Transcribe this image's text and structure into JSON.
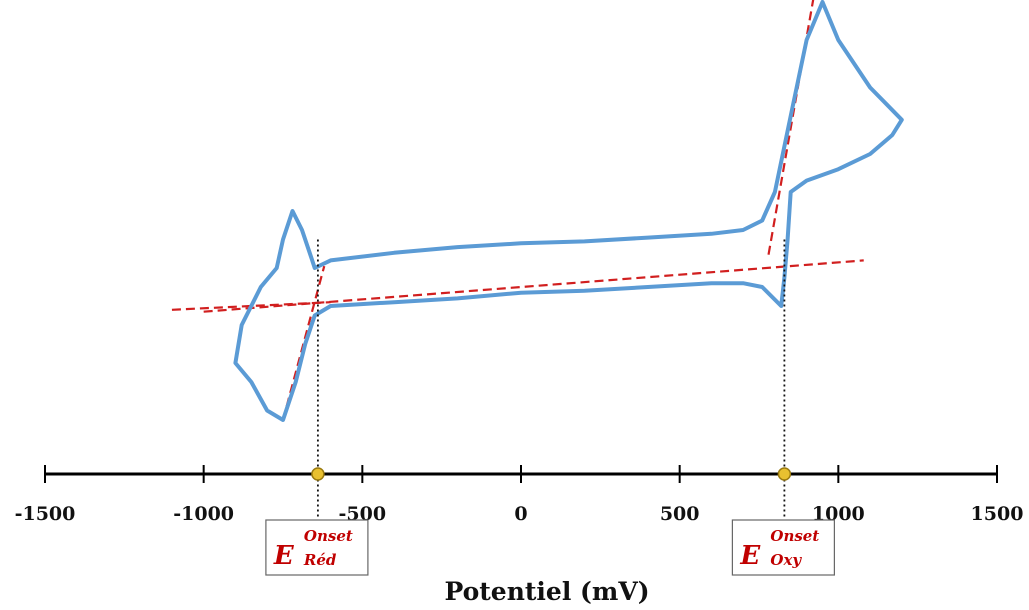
{
  "chart_data": {
    "type": "line",
    "xlabel": "Potentiel (mV)",
    "ylabel": "",
    "xlim": [
      -1500,
      1500
    ],
    "x_ticks": [
      -1500,
      -1000,
      -500,
      0,
      500,
      1000,
      1500
    ],
    "x_tick_labels": [
      "-1500",
      "-1000",
      "-500",
      "0",
      "500",
      "1000",
      "1500"
    ],
    "grid": false,
    "colors": {
      "curve": "#5b9bd5",
      "tangent": "#d11f1f",
      "marker": "#e8c030",
      "label": "#c00000",
      "axis": "#000000"
    },
    "series": [
      {
        "values": [
          [
            -650,
            -0.2
          ],
          [
            -600,
            -0.16
          ],
          [
            -400,
            -0.12
          ],
          [
            -200,
            -0.09
          ],
          [
            0,
            -0.07
          ],
          [
            200,
            -0.06
          ],
          [
            400,
            -0.04
          ],
          [
            600,
            -0.02
          ],
          [
            700,
            0.0
          ],
          [
            760,
            0.05
          ],
          [
            800,
            0.2
          ],
          [
            850,
            0.6
          ],
          [
            900,
            1.0
          ],
          [
            950,
            1.2
          ],
          [
            1000,
            1.0
          ],
          [
            1100,
            0.75
          ],
          [
            1200,
            0.58
          ],
          [
            1170,
            0.5
          ],
          [
            1100,
            0.4
          ],
          [
            1000,
            0.32
          ],
          [
            900,
            0.26
          ],
          [
            850,
            0.2
          ],
          [
            840,
            -0.05
          ],
          [
            830,
            -0.25
          ],
          [
            820,
            -0.4
          ],
          [
            760,
            -0.3
          ],
          [
            700,
            -0.28
          ],
          [
            600,
            -0.28
          ],
          [
            400,
            -0.3
          ],
          [
            200,
            -0.32
          ],
          [
            0,
            -0.33
          ],
          [
            -200,
            -0.36
          ],
          [
            -400,
            -0.38
          ],
          [
            -600,
            -0.4
          ],
          [
            -650,
            -0.45
          ],
          [
            -680,
            -0.6
          ],
          [
            -710,
            -0.8
          ],
          [
            -750,
            -1.0
          ],
          [
            -800,
            -0.95
          ],
          [
            -850,
            -0.8
          ],
          [
            -900,
            -0.7
          ],
          [
            -880,
            -0.5
          ],
          [
            -820,
            -0.3
          ],
          [
            -770,
            -0.2
          ],
          [
            -750,
            -0.05
          ],
          [
            -720,
            0.1
          ],
          [
            -690,
            0.0
          ],
          [
            -660,
            -0.15
          ],
          [
            -650,
            -0.2
          ]
        ]
      }
    ],
    "tangents": [
      {
        "points": [
          [
            -1000,
            -0.43
          ],
          [
            1080,
            -0.16
          ]
        ]
      },
      {
        "points": [
          [
            -750,
            -1.0
          ],
          [
            -620,
            -0.19
          ]
        ]
      },
      {
        "points": [
          [
            -1100,
            -0.42
          ],
          [
            -600,
            -0.38
          ]
        ]
      },
      {
        "points": [
          [
            780,
            -0.13
          ],
          [
            930,
            1.3
          ]
        ]
      }
    ],
    "onsets": [
      {
        "x": -640,
        "label_E": "E",
        "sup": "Onset",
        "sub": "Réd"
      },
      {
        "x": 830,
        "label_E": "E",
        "sup": "Onset",
        "sub": "Oxy"
      }
    ]
  }
}
